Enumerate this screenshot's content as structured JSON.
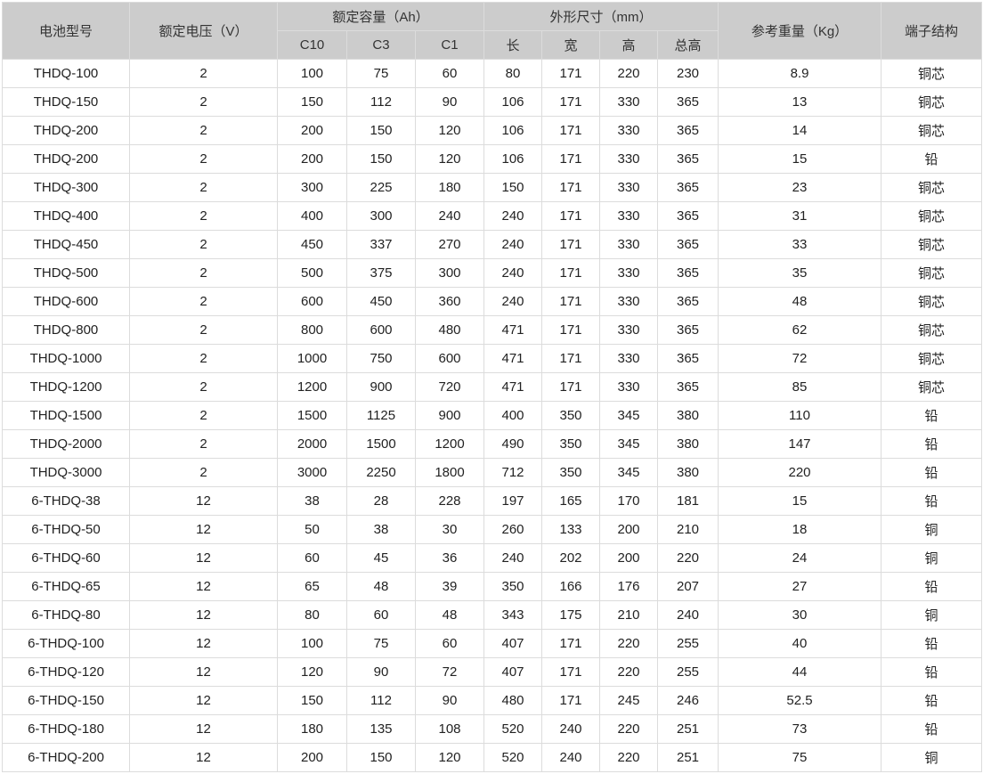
{
  "header": {
    "model": "电池型号",
    "voltage": "额定电压（V）",
    "capacity": "额定容量（Ah）",
    "dimensions": "外形尺寸（mm）",
    "weight": "参考重量（Kg）",
    "terminal": "端子结构",
    "capacity_sub": [
      "C10",
      "C3",
      "C1"
    ],
    "dimension_sub": [
      "长",
      "宽",
      "高",
      "总高"
    ]
  },
  "rows": [
    [
      "THDQ-100",
      "2",
      "100",
      "75",
      "60",
      "80",
      "171",
      "220",
      "230",
      "8.9",
      "铜芯"
    ],
    [
      "THDQ-150",
      "2",
      "150",
      "112",
      "90",
      "106",
      "171",
      "330",
      "365",
      "13",
      "铜芯"
    ],
    [
      "THDQ-200",
      "2",
      "200",
      "150",
      "120",
      "106",
      "171",
      "330",
      "365",
      "14",
      "铜芯"
    ],
    [
      "THDQ-200",
      "2",
      "200",
      "150",
      "120",
      "106",
      "171",
      "330",
      "365",
      "15",
      "铅"
    ],
    [
      "THDQ-300",
      "2",
      "300",
      "225",
      "180",
      "150",
      "171",
      "330",
      "365",
      "23",
      "铜芯"
    ],
    [
      "THDQ-400",
      "2",
      "400",
      "300",
      "240",
      "240",
      "171",
      "330",
      "365",
      "31",
      "铜芯"
    ],
    [
      "THDQ-450",
      "2",
      "450",
      "337",
      "270",
      "240",
      "171",
      "330",
      "365",
      "33",
      "铜芯"
    ],
    [
      "THDQ-500",
      "2",
      "500",
      "375",
      "300",
      "240",
      "171",
      "330",
      "365",
      "35",
      "铜芯"
    ],
    [
      "THDQ-600",
      "2",
      "600",
      "450",
      "360",
      "240",
      "171",
      "330",
      "365",
      "48",
      "铜芯"
    ],
    [
      "THDQ-800",
      "2",
      "800",
      "600",
      "480",
      "471",
      "171",
      "330",
      "365",
      "62",
      "铜芯"
    ],
    [
      "THDQ-1000",
      "2",
      "1000",
      "750",
      "600",
      "471",
      "171",
      "330",
      "365",
      "72",
      "铜芯"
    ],
    [
      "THDQ-1200",
      "2",
      "1200",
      "900",
      "720",
      "471",
      "171",
      "330",
      "365",
      "85",
      "铜芯"
    ],
    [
      "THDQ-1500",
      "2",
      "1500",
      "1125",
      "900",
      "400",
      "350",
      "345",
      "380",
      "110",
      "铅"
    ],
    [
      "THDQ-2000",
      "2",
      "2000",
      "1500",
      "1200",
      "490",
      "350",
      "345",
      "380",
      "147",
      "铅"
    ],
    [
      "THDQ-3000",
      "2",
      "3000",
      "2250",
      "1800",
      "712",
      "350",
      "345",
      "380",
      "220",
      "铅"
    ],
    [
      "6-THDQ-38",
      "12",
      "38",
      "28",
      "228",
      "197",
      "165",
      "170",
      "181",
      "15",
      "铅"
    ],
    [
      "6-THDQ-50",
      "12",
      "50",
      "38",
      "30",
      "260",
      "133",
      "200",
      "210",
      "18",
      "铜"
    ],
    [
      "6-THDQ-60",
      "12",
      "60",
      "45",
      "36",
      "240",
      "202",
      "200",
      "220",
      "24",
      "铜"
    ],
    [
      "6-THDQ-65",
      "12",
      "65",
      "48",
      "39",
      "350",
      "166",
      "176",
      "207",
      "27",
      "铅"
    ],
    [
      "6-THDQ-80",
      "12",
      "80",
      "60",
      "48",
      "343",
      "175",
      "210",
      "240",
      "30",
      "铜"
    ],
    [
      "6-THDQ-100",
      "12",
      "100",
      "75",
      "60",
      "407",
      "171",
      "220",
      "255",
      "40",
      "铅"
    ],
    [
      "6-THDQ-120",
      "12",
      "120",
      "90",
      "72",
      "407",
      "171",
      "220",
      "255",
      "44",
      "铅"
    ],
    [
      "6-THDQ-150",
      "12",
      "150",
      "112",
      "90",
      "480",
      "171",
      "245",
      "246",
      "52.5",
      "铅"
    ],
    [
      "6-THDQ-180",
      "12",
      "180",
      "135",
      "108",
      "520",
      "240",
      "220",
      "251",
      "73",
      "铅"
    ],
    [
      "6-THDQ-200",
      "12",
      "200",
      "150",
      "120",
      "520",
      "240",
      "220",
      "251",
      "75",
      "铜"
    ]
  ]
}
